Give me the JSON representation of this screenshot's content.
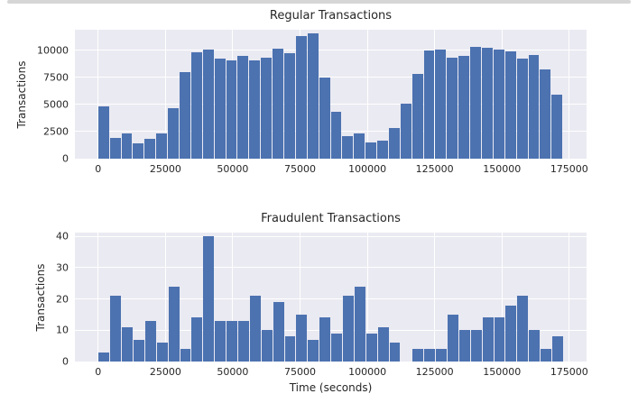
{
  "figure": {
    "kind": "matplotlib-seaborn-figure",
    "background": "#ffffff",
    "axes_background": "#eaeaf2",
    "grid_color": "#ffffff",
    "text_color": "#262626",
    "bar_color": "#4c72b0"
  },
  "chart_data": [
    {
      "type": "bar",
      "subtype": "histogram",
      "title": "Regular Transactions",
      "xlabel": "",
      "ylabel": "Transactions",
      "legend": null,
      "grid": true,
      "bar_color": "#4c72b0",
      "bin_start": 0,
      "bin_width": 4320,
      "values": [
        4800,
        1950,
        2300,
        1450,
        1800,
        2350,
        4700,
        8000,
        9800,
        10100,
        9200,
        9100,
        9500,
        9100,
        9300,
        10150,
        9700,
        11350,
        11550,
        7500,
        4300,
        2100,
        2350,
        1500,
        1650,
        2800,
        5100,
        7800,
        10000,
        10050,
        9350,
        9500,
        10300,
        10250,
        10100,
        9900,
        9250,
        9550,
        8250,
        5950
      ],
      "x_ticks": [
        0,
        25000,
        50000,
        75000,
        100000,
        125000,
        150000,
        175000
      ],
      "y_ticks": [
        0,
        2500,
        5000,
        7500,
        10000
      ],
      "xlim": [
        -8640,
        181430
      ],
      "ylim": [
        0,
        11900
      ]
    },
    {
      "type": "bar",
      "subtype": "histogram",
      "title": "Fraudulent Transactions",
      "xlabel": "Time (seconds)",
      "ylabel": "Transactions",
      "legend": null,
      "grid": true,
      "bar_color": "#4c72b0",
      "bin_start": 200,
      "bin_width": 4320,
      "values": [
        3,
        21,
        11,
        7,
        13,
        6,
        24,
        4,
        14,
        40,
        13,
        13,
        13,
        21,
        10,
        19,
        8,
        15,
        7,
        14,
        9,
        21,
        24,
        9,
        11,
        6,
        0,
        4,
        4,
        4,
        15,
        10,
        10,
        14,
        14,
        18,
        21,
        10,
        4,
        8
      ],
      "x_ticks": [
        0,
        25000,
        50000,
        75000,
        100000,
        125000,
        150000,
        175000
      ],
      "y_ticks": [
        0,
        10,
        20,
        30,
        40
      ],
      "xlim": [
        -8640,
        181430
      ],
      "ylim": [
        0,
        41.2
      ]
    }
  ]
}
